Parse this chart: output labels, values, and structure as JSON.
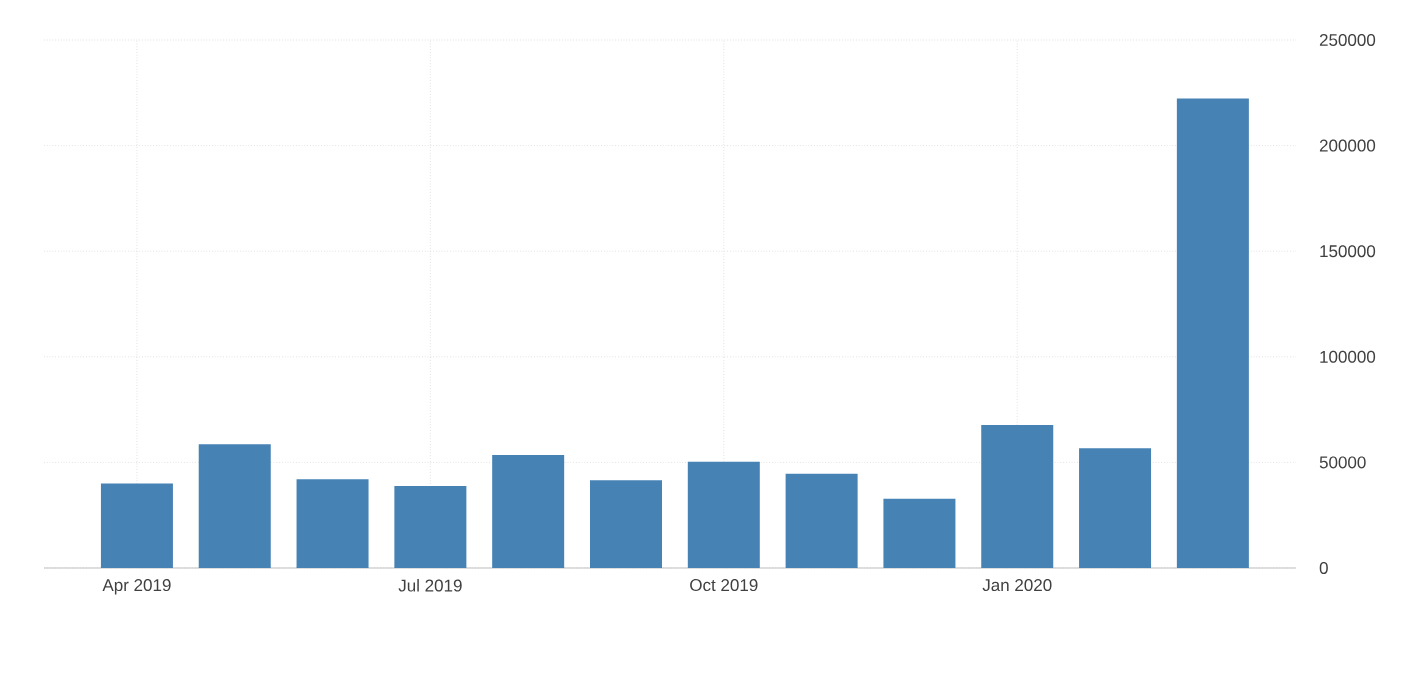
{
  "chart_data": {
    "type": "bar",
    "categories": [
      "Apr 2019",
      null,
      null,
      "Jul 2019",
      null,
      null,
      "Oct 2019",
      null,
      null,
      "Jan 2020",
      null,
      null
    ],
    "values": [
      40000,
      58600,
      42000,
      38800,
      53500,
      41600,
      50300,
      44600,
      32800,
      67700,
      56700,
      222300
    ],
    "color": "#4682b4",
    "ylim": [
      0,
      250000
    ],
    "yticks": [
      0,
      50000,
      100000,
      150000,
      200000,
      250000
    ],
    "grid": true
  }
}
